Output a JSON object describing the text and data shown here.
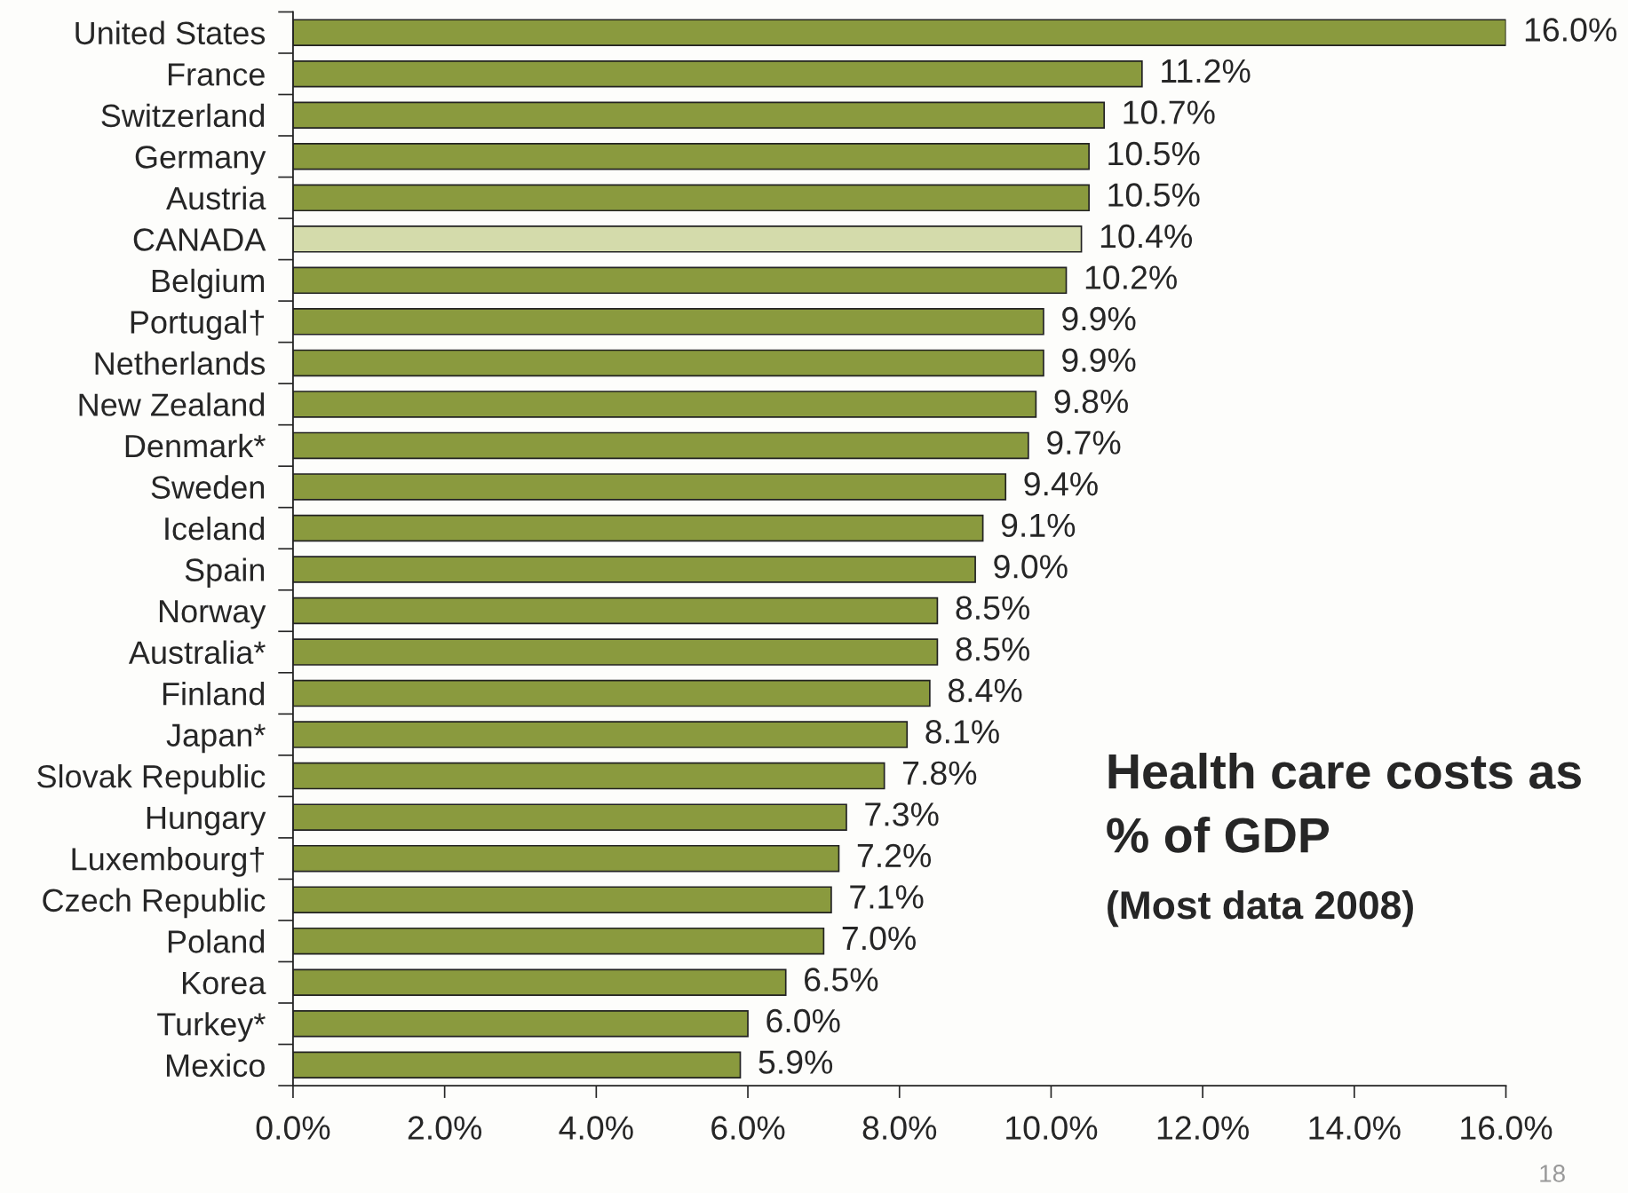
{
  "chart_data": {
    "type": "bar",
    "orientation": "horizontal",
    "title": "Health care costs as\n% of GDP",
    "subtitle": "(Most data 2008)",
    "categories": [
      "United States",
      "France",
      "Switzerland",
      "Germany",
      "Austria",
      "CANADA",
      "Belgium",
      "Portugal†",
      "Netherlands",
      "New Zealand",
      "Denmark*",
      "Sweden",
      "Iceland",
      "Spain",
      "Norway",
      "Australia*",
      "Finland",
      "Japan*",
      "Slovak Republic",
      "Hungary",
      "Luxembourg†",
      "Czech Republic",
      "Poland",
      "Korea",
      "Turkey*",
      "Mexico"
    ],
    "values": [
      16.0,
      11.2,
      10.7,
      10.5,
      10.5,
      10.4,
      10.2,
      9.9,
      9.9,
      9.8,
      9.7,
      9.4,
      9.1,
      9.0,
      8.5,
      8.5,
      8.4,
      8.1,
      7.8,
      7.3,
      7.2,
      7.1,
      7.0,
      6.5,
      6.0,
      5.9
    ],
    "value_labels": [
      "16.0%",
      "11.2%",
      "10.7%",
      "10.5%",
      "10.5%",
      "10.4%",
      "10.2%",
      "9.9%",
      "9.9%",
      "9.8%",
      "9.7%",
      "9.4%",
      "9.1%",
      "9.0%",
      "8.5%",
      "8.5%",
      "8.4%",
      "8.1%",
      "7.8%",
      "7.3%",
      "7.2%",
      "7.1%",
      "7.0%",
      "6.5%",
      "6.0%",
      "5.9%"
    ],
    "colors": [
      "#8a9a3e",
      "#8a9a3e",
      "#8a9a3e",
      "#8a9a3e",
      "#8a9a3e",
      "#d4dbab",
      "#8a9a3e",
      "#8a9a3e",
      "#8a9a3e",
      "#8a9a3e",
      "#8a9a3e",
      "#8a9a3e",
      "#8a9a3e",
      "#8a9a3e",
      "#8a9a3e",
      "#8a9a3e",
      "#8a9a3e",
      "#8a9a3e",
      "#8a9a3e",
      "#8a9a3e",
      "#8a9a3e",
      "#8a9a3e",
      "#8a9a3e",
      "#8a9a3e",
      "#8a9a3e",
      "#8a9a3e"
    ],
    "xlim": [
      0,
      16
    ],
    "xticks": [
      {
        "value": 0,
        "label": "0.0%"
      },
      {
        "value": 2,
        "label": "2.0%"
      },
      {
        "value": 4,
        "label": "4.0%"
      },
      {
        "value": 6,
        "label": "6.0%"
      },
      {
        "value": 8,
        "label": "8.0%"
      },
      {
        "value": 10,
        "label": "10.0%"
      },
      {
        "value": 12,
        "label": "12.0%"
      },
      {
        "value": 14,
        "label": "14.0%"
      },
      {
        "value": 16,
        "label": "16.0%"
      }
    ],
    "annotations": [
      "18"
    ],
    "grid": false,
    "legend": false
  }
}
